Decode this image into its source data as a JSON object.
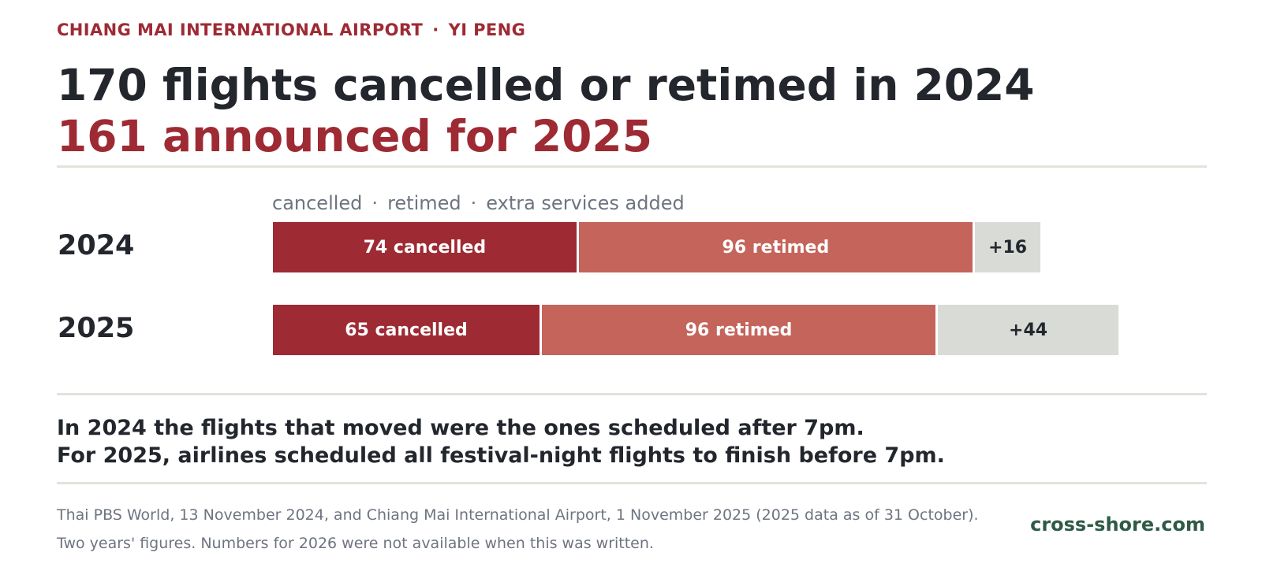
{
  "kicker": {
    "place": "CHIANG MAI INTERNATIONAL AIRPORT",
    "separator": "·",
    "event": "YI PENG"
  },
  "headline": {
    "line1": "170 flights cancelled or retimed in 2024",
    "line2": "161 announced for 2025"
  },
  "legend": {
    "cancelled": "cancelled",
    "separator": "·",
    "retimed": "retimed",
    "extra": "extra services added"
  },
  "chart_data": {
    "type": "bar",
    "orientation": "horizontal",
    "stacked": true,
    "categories": [
      "2024",
      "2025"
    ],
    "series": [
      {
        "name": "cancelled",
        "values": [
          74,
          65
        ],
        "labels": [
          "74 cancelled",
          "65 cancelled"
        ],
        "color": "#9e2a33"
      },
      {
        "name": "retimed",
        "values": [
          96,
          96
        ],
        "labels": [
          "96 retimed",
          "96 retimed"
        ],
        "color": "#c4645b"
      },
      {
        "name": "extra services added",
        "values": [
          16,
          44
        ],
        "labels": [
          "+16",
          "+44"
        ],
        "color": "#d9dbd6"
      }
    ]
  },
  "note": {
    "line1": "In 2024 the flights that moved were the ones scheduled after 7pm.",
    "line2": "For 2025, airlines scheduled all festival-night flights to finish before 7pm."
  },
  "source": {
    "line1": "Thai PBS World, 13 November 2024, and Chiang Mai International Airport, 1 November 2025 (2025 data as of 31 October).",
    "line2": "Two years' figures. Numbers for 2026 were not available when this was written."
  },
  "brand": "cross-shore.com"
}
